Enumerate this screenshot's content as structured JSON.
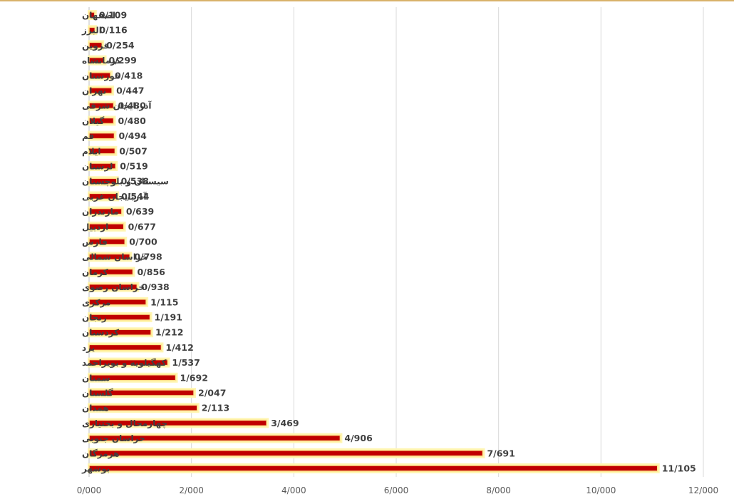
{
  "chart_data": {
    "type": "bar",
    "orientation": "horizontal",
    "categories": [
      "اصفهان",
      "البرز",
      "قزوین",
      "کرمانشاه",
      "خوزستان",
      "تهران",
      "آذربایجان شرقی",
      "گیلان",
      "قم",
      "ایلام",
      "لرستان",
      "سیستان و بلوچستان",
      "آذربایجان غربی",
      "مازندران",
      "اردبیل",
      "فارس",
      "خراسان شمالی",
      "کرمان",
      "خراسان رضوی",
      "مرکزی",
      "زنجان",
      "کردستان",
      "یزد",
      "کهگیلویه و بویراحمد",
      "سمنان",
      "گلستان",
      "همدان",
      "چهارمحال و بختیاری",
      "خراسان جنوبی",
      "هرمزگان",
      "بوشهر"
    ],
    "values": [
      0.109,
      0.116,
      0.254,
      0.299,
      0.418,
      0.447,
      0.48,
      0.48,
      0.494,
      0.507,
      0.519,
      0.538,
      0.544,
      0.639,
      0.677,
      0.7,
      0.798,
      0.856,
      0.938,
      1.115,
      1.191,
      1.212,
      1.412,
      1.537,
      1.692,
      2.047,
      2.113,
      3.469,
      4.906,
      7.691,
      11.105
    ],
    "value_labels": [
      "0/109",
      "0/116",
      "0/254",
      "0/299",
      "0/418",
      "0/447",
      "0/480",
      "0/480",
      "0/494",
      "0/507",
      "0/519",
      "0/538",
      "0/544",
      "0/639",
      "0/677",
      "0/700",
      "0/798",
      "0/856",
      "0/938",
      "1/115",
      "1/191",
      "1/212",
      "1/412",
      "1/537",
      "1/692",
      "2/047",
      "2/113",
      "3/469",
      "4/906",
      "7/691",
      "11/105"
    ],
    "xlim": [
      0,
      12
    ],
    "x_ticks": [
      0,
      2,
      4,
      6,
      8,
      10,
      12
    ],
    "x_tick_labels": [
      "0/000",
      "2/000",
      "4/000",
      "6/000",
      "8/000",
      "10/000",
      "12/000"
    ],
    "grid": "vertical",
    "title": "",
    "xlabel": "",
    "ylabel": "",
    "bar_color": "#c00000",
    "bar_glow_color": "#fff6b3"
  }
}
